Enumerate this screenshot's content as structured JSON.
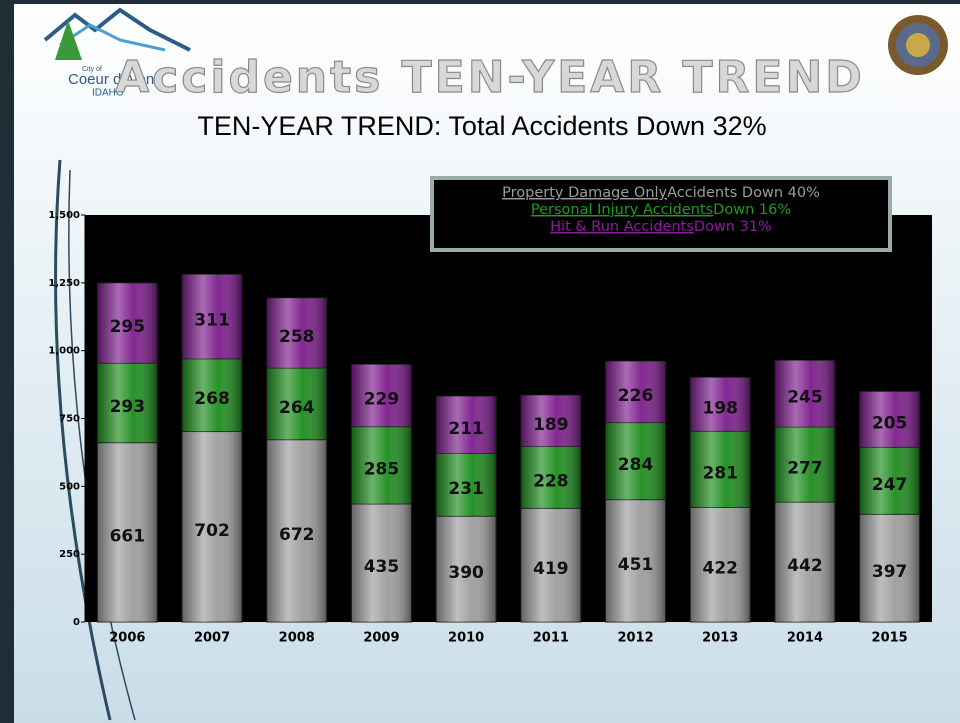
{
  "logo": {
    "small": "City of",
    "name": "Coeur d'Alene",
    "state": "IDAHO"
  },
  "chart_data": {
    "type": "bar",
    "stacked": true,
    "title": "Accidents TEN-YEAR TREND",
    "subtitle": "TEN-YEAR TREND: Total Accidents Down 32%",
    "categories": [
      "2006",
      "2007",
      "2008",
      "2009",
      "2010",
      "2011",
      "2012",
      "2013",
      "2014",
      "2015"
    ],
    "series": [
      {
        "name": "Property Damage Only",
        "color": "#9c9c9c",
        "values": [
          661,
          702,
          672,
          435,
          390,
          419,
          451,
          422,
          442,
          397
        ]
      },
      {
        "name": "Personal Injury Accidents",
        "color": "#1c8c1c",
        "values": [
          293,
          268,
          264,
          285,
          231,
          228,
          284,
          281,
          277,
          247
        ]
      },
      {
        "name": "Hit & Run Accidents",
        "color": "#7c1c8c",
        "values": [
          295,
          311,
          258,
          229,
          211,
          189,
          226,
          198,
          245,
          205
        ]
      }
    ],
    "legend_notes": [
      "Accidents Down 40%",
      "Down 16%",
      "Down 31%"
    ],
    "ylim": [
      0,
      1500
    ],
    "yticks": [
      0,
      250,
      500,
      750,
      {
        "value": 1000,
        "label": "1,000"
      },
      {
        "value": 1250,
        "label": "1,250"
      },
      {
        "value": 1500,
        "label": "1,500"
      }
    ],
    "plot_background": "#000000"
  }
}
